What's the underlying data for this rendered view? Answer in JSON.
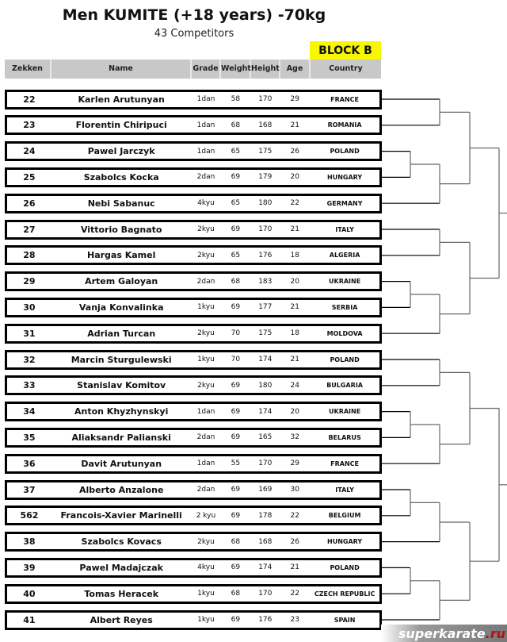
{
  "title": "Men KUMITE  (+18 years) -70kg",
  "subtitle": "43 Competitors",
  "block": "BLOCK   B",
  "headers": [
    "Zekken",
    "Name",
    "Grade",
    "Weight",
    "Height",
    "Age",
    "Country"
  ],
  "rows": [
    [
      "22",
      "Karlen Arutunyan",
      "1dan",
      "58",
      "170",
      "29",
      "FRANCE"
    ],
    [
      "23",
      "Florentin Chiripuci",
      "1dan",
      "68",
      "168",
      "21",
      "ROMANIA"
    ],
    [
      "24",
      "Pawel Jarczyk",
      "1dan",
      "65",
      "175",
      "26",
      "POLAND"
    ],
    [
      "25",
      "Szabolcs Kocka",
      "2dan",
      "69",
      "179",
      "20",
      "HUNGARY"
    ],
    [
      "26",
      "Nebi  Sabanuc",
      "4kyu",
      "65",
      "180",
      "22",
      "GERMANY"
    ],
    [
      "27",
      "Vittorio Bagnato",
      "2kyu",
      "69",
      "170",
      "21",
      "ITALY"
    ],
    [
      "28",
      "Hargas Kamel",
      "2kyu",
      "65",
      "176",
      "18",
      "ALGERIA"
    ],
    [
      "29",
      "Artem Galoyan",
      "2dan",
      "68",
      "183",
      "20",
      "UKRAINE"
    ],
    [
      "30",
      "Vanja Konvalinka",
      "1kyu",
      "69",
      "177",
      "21",
      "SERBIA"
    ],
    [
      "31",
      "Adrian Turcan",
      "2kyu",
      "70",
      "175",
      "18",
      "MOLDOVA"
    ],
    [
      "32",
      "Marcin Sturgulewski",
      "1kyu",
      "70",
      "174",
      "21",
      "POLAND"
    ],
    [
      "33",
      "Stanislav Komitov",
      "2kyu",
      "69",
      "180",
      "24",
      "BULGARIA"
    ],
    [
      "34",
      "Anton Khyzhynskyi",
      "1dan",
      "69",
      "174",
      "20",
      "UKRAINE"
    ],
    [
      "35",
      "Aliaksandr  Palianski",
      "2dan",
      "69",
      "165",
      "32",
      "BELARUS"
    ],
    [
      "36",
      "Davit Arutunyan",
      "1dan",
      "55",
      "170",
      "29",
      "FRANCE"
    ],
    [
      "37",
      "Alberto Anzalone",
      "2dan",
      "69",
      "169",
      "30",
      "ITALY"
    ],
    [
      "562",
      "Francois-Xavier Marinelli",
      "2 kyu",
      "69",
      "178",
      "22",
      "BELGIUM"
    ],
    [
      "38",
      "Szabolcs Kovacs",
      "2kyu",
      "68",
      "168",
      "26",
      "HUNGARY"
    ],
    [
      "39",
      "Pawel Madajczak",
      "4kyu",
      "69",
      "174",
      "21",
      "POLAND"
    ],
    [
      "40",
      "Tomas Heracek",
      "1kyu",
      "68",
      "170",
      "22",
      "CZECH REPUBLIC"
    ],
    [
      "41",
      "Albert Reyes",
      "1kyu",
      "69",
      "176",
      "23",
      "SPAIN"
    ]
  ],
  "watermark": {
    "main": "superkarate",
    "tld": ".ru"
  }
}
